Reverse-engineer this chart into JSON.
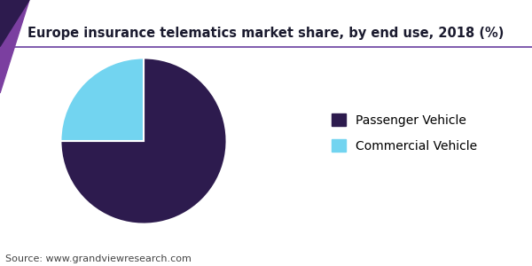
{
  "title": "Europe insurance telematics market share, by end use, 2018 (%)",
  "slices": [
    75,
    25
  ],
  "labels": [
    "Passenger Vehicle",
    "Commercial Vehicle"
  ],
  "colors": [
    "#2d1b4e",
    "#72d4f0"
  ],
  "startangle": 90,
  "source_text": "Source: www.grandviewresearch.com",
  "title_fontsize": 10.5,
  "legend_fontsize": 10,
  "source_fontsize": 8,
  "background_color": "#ffffff",
  "header_line_color": "#6a3fa0",
  "corner_color_dark": "#2d1b4e",
  "corner_color_mid": "#7b3fa0"
}
